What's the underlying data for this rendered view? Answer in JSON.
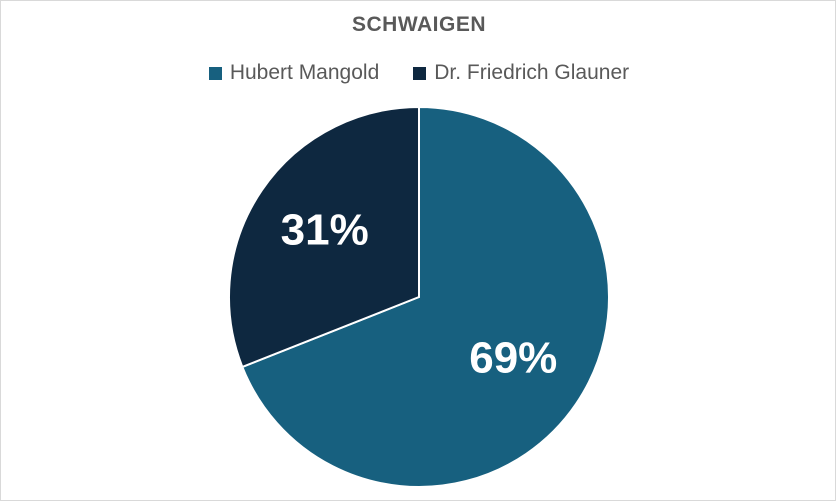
{
  "chart_data": {
    "type": "pie",
    "title": "SCHWAIGEN",
    "legend_position": "top",
    "categories": [
      "Hubert Mangold",
      "Dr. Friedrich Glauner"
    ],
    "values": [
      69,
      31
    ],
    "data_labels": [
      "69%",
      "31%"
    ],
    "colors": [
      "#17607f",
      "#0e2840"
    ]
  }
}
